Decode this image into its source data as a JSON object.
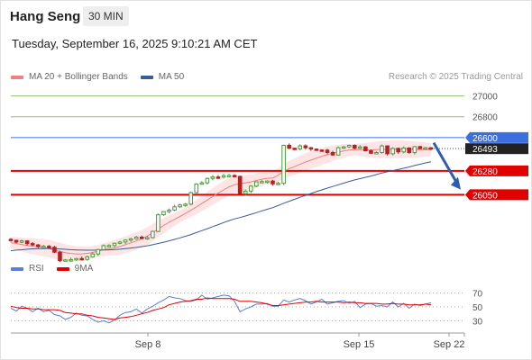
{
  "header": {
    "instrument": "Hang Seng",
    "timeframe": "30 MIN",
    "timestamp": "Tuesday, September 16, 2025 9:10:21 AM CET"
  },
  "legend": {
    "ma20_label": "MA 20 + Bollinger Bands",
    "ma50_label": "MA 50",
    "credit": "Research © 2025 Trading Central",
    "ma20_color": "#f08080",
    "ma50_color": "#3a5a9a"
  },
  "rsi_legend": {
    "rsi_label": "RSI",
    "ma9_label": "9MA",
    "rsi_color": "#5b7fd6",
    "ma9_color": "#e00000"
  },
  "chart_data": [
    {
      "type": "candlestick",
      "title": "",
      "ylim": [
        25500,
        27100
      ],
      "y_ticks": [
        27000,
        26800,
        26600,
        26493,
        26280,
        26050
      ],
      "x_ticks": [
        "Sep 8",
        "Sep 15",
        "Sep 22"
      ],
      "levels": [
        {
          "value": 27000,
          "color": "#8cc36b",
          "kind": "resistance"
        },
        {
          "value": 26800,
          "color": "#8cc36b",
          "kind": "resistance"
        },
        {
          "value": 26600,
          "color": "#3b6fe0",
          "kind": "pivot"
        },
        {
          "value": 26280,
          "color": "#e00000",
          "kind": "support"
        },
        {
          "value": 26050,
          "color": "#e00000",
          "kind": "support"
        }
      ],
      "last_price": 26493,
      "forecast_arrow": {
        "from": 26550,
        "to": 26100
      },
      "close_series": [
        25612,
        25595,
        25607,
        25581,
        25568,
        25552,
        25555,
        25545,
        25498,
        25416,
        25424,
        25427,
        25437,
        25429,
        25454,
        25481,
        25523,
        25561,
        25562,
        25584,
        25596,
        25615,
        25627,
        25643,
        25632,
        25638,
        25698,
        25858,
        25888,
        25903,
        25934,
        25952,
        25960,
        26070,
        26152,
        26165,
        26207,
        26221,
        26220,
        26234,
        26236,
        26226,
        26060,
        26085,
        26133,
        26175,
        26177,
        26182,
        26155,
        26160,
        26525,
        26497,
        26492,
        26520,
        26502,
        26489,
        26480,
        26479,
        26456,
        26432,
        26502,
        26510,
        26525,
        26497,
        26510,
        26472,
        26449,
        26456,
        26520,
        26444,
        26495,
        26462,
        26499,
        26455,
        26513,
        26494,
        26502,
        26493
      ],
      "ma20_series": [
        25590,
        25582,
        25572,
        25562,
        25555,
        25549,
        25542,
        25532,
        25519,
        25505,
        25494,
        25486,
        25482,
        25482,
        25487,
        25496,
        25509,
        25522,
        25531,
        25540,
        25553,
        25570,
        25588,
        25606,
        25627,
        25653,
        25686,
        25722,
        25754,
        25785,
        25814,
        25842,
        25871,
        25901,
        25933,
        25966,
        25999,
        26033,
        26067,
        26097,
        26126,
        26147,
        26156,
        26165,
        26174,
        26187,
        26200,
        26208,
        26210,
        26238,
        26275,
        26301,
        26320,
        26344,
        26365,
        26383,
        26402,
        26420,
        26435,
        26449,
        26459,
        26472,
        26480,
        26484,
        26483,
        26482,
        26481,
        26483,
        26487,
        26484,
        26488,
        26487,
        26488,
        26486,
        26484,
        26484,
        26484,
        26484
      ],
      "ma50_series": [
        25512,
        25518,
        25522,
        25527,
        25530,
        25532,
        25533,
        25535,
        25533,
        25529,
        25526,
        25522,
        25520,
        25518,
        25517,
        25517,
        25518,
        25519,
        25521,
        25523,
        25527,
        25532,
        25538,
        25544,
        25552,
        25560,
        25570,
        25582,
        25594,
        25607,
        25621,
        25636,
        25651,
        25668,
        25687,
        25705,
        25724,
        25744,
        25763,
        25783,
        25802,
        25818,
        25831,
        25846,
        25862,
        25878,
        25895,
        25911,
        25926,
        25946,
        25969,
        25988,
        26006,
        26026,
        26044,
        26062,
        26080,
        26097,
        26114,
        26130,
        26146,
        26162,
        26178,
        26193,
        26205,
        26218,
        26230,
        26244,
        26259,
        26271,
        26282,
        26293,
        26305,
        26317,
        26331,
        26343,
        26356,
        26367
      ]
    },
    {
      "type": "line",
      "title": "",
      "ylim": [
        15,
        85
      ],
      "y_ticks": [
        70,
        50,
        30
      ],
      "series": [
        {
          "name": "RSI",
          "color": "#5b7fd6",
          "values": [
            48,
            44,
            51,
            48,
            43,
            48,
            43,
            45,
            39,
            37,
            32,
            35,
            41,
            38,
            37,
            32,
            28,
            30,
            27,
            31,
            38,
            42,
            43,
            47,
            41,
            47,
            51,
            56,
            60,
            65,
            63,
            62,
            59,
            58,
            60,
            67,
            61,
            63,
            65,
            67,
            66,
            58,
            43,
            47,
            50,
            54,
            54,
            55,
            51,
            51,
            60,
            57,
            60,
            62,
            59,
            54,
            57,
            61,
            54,
            56,
            58,
            59,
            55,
            58,
            49,
            54,
            55,
            51,
            52,
            50,
            57,
            50,
            55,
            48,
            54,
            52,
            54,
            56
          ]
        },
        {
          "name": "9MA",
          "color": "#e00000",
          "values": [
            51,
            49,
            48,
            48,
            47,
            47,
            46,
            46,
            46,
            45,
            42,
            41,
            40,
            40,
            38,
            37,
            35,
            34,
            33,
            32,
            34,
            35,
            36,
            38,
            40,
            42,
            45,
            47,
            49,
            53,
            55,
            57,
            58,
            59,
            61,
            61,
            63,
            62,
            62,
            62,
            62,
            61,
            58,
            58,
            58,
            57,
            56,
            54,
            52,
            52,
            53,
            54,
            55,
            56,
            57,
            57,
            58,
            57,
            57,
            57,
            57,
            56,
            57,
            56,
            56,
            55,
            55,
            55,
            54,
            54,
            55,
            54,
            54,
            53,
            53,
            53,
            54,
            53
          ]
        }
      ]
    }
  ]
}
